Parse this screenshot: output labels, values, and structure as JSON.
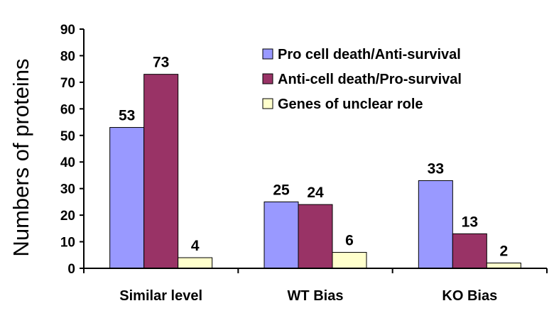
{
  "chart_data": {
    "type": "bar",
    "categories": [
      "Similar level",
      "WT Bias",
      "KO Bias"
    ],
    "series": [
      {
        "name": "Pro cell death/Anti-survival",
        "values": [
          53,
          25,
          33
        ],
        "color": "#9999ff"
      },
      {
        "name": "Anti-cell death/Pro-survival",
        "values": [
          73,
          24,
          13
        ],
        "color": "#993366"
      },
      {
        "name": "Genes of unclear role",
        "values": [
          4,
          6,
          2
        ],
        "color": "#ffffcc"
      }
    ],
    "title": "",
    "xlabel": "",
    "ylabel": "Numbers of proteins",
    "ylim": [
      0,
      90
    ],
    "yticks": [
      0,
      10,
      20,
      30,
      40,
      50,
      60,
      70,
      80,
      90
    ],
    "grid": false,
    "legend_position": "top-right",
    "data_labels": true
  }
}
